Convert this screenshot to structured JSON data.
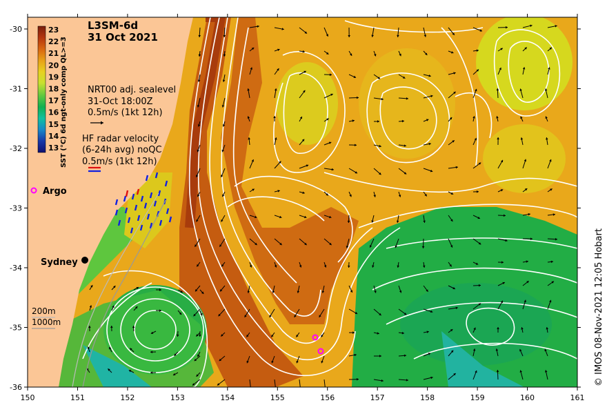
{
  "map": {
    "product": "L3SM-6d",
    "date": "31 Oct 2021",
    "sealevel": {
      "line1": "NRT00 adj. sealevel",
      "line2": "31-Oct 18:00Z",
      "line3": "0.5m/s (1kt 12h)"
    },
    "hfradar": {
      "line1": "HF radar velocity",
      "line2": "(6-24h avg) noQC",
      "line3": "0.5m/s (1kt 12h)"
    },
    "argo_label": "Argo",
    "city_label": "Sydney",
    "depth_labels": [
      "200m",
      "1000m"
    ],
    "credit": "© IMOS 08-Nov-2021 12:05 Hobart",
    "colorbar": {
      "title": "SST (°C) 6d ngt-only comp QL>=3",
      "ticks": [
        "23",
        "22",
        "21",
        "20",
        "19",
        "18",
        "17",
        "16",
        "15",
        "14",
        "13"
      ],
      "colors": [
        "#7a1e0c",
        "#b5350e",
        "#d86510",
        "#e8a018",
        "#e8d020",
        "#c8e030",
        "#60c840",
        "#10b050",
        "#10c0a0",
        "#1888c8",
        "#1838a8",
        "#101070"
      ]
    },
    "x_ticks": [
      "150",
      "151",
      "152",
      "153",
      "154",
      "155",
      "156",
      "157",
      "158",
      "159",
      "160",
      "161"
    ],
    "y_ticks": [
      "-30",
      "-31",
      "-32",
      "-33",
      "-34",
      "-35",
      "-36"
    ],
    "colors": {
      "land": "#fbc696",
      "warm": "#d9770f",
      "hot": "#b24b0c",
      "cool": "#2fb343",
      "mild": "#d8d01c",
      "argo": "#ff00ff"
    }
  }
}
